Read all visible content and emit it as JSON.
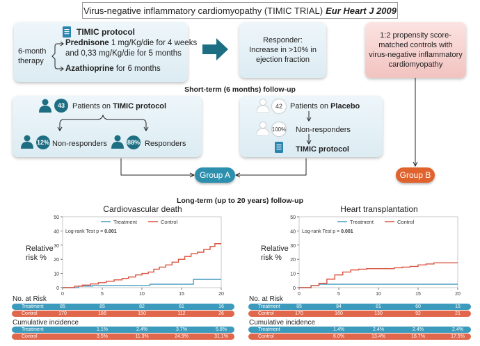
{
  "title": {
    "main": "Virus-negative inflammatory cardiomyopathy (TIMIC TRIAL)",
    "journal": "Eur Heart J 2009"
  },
  "protocol_box": {
    "heading": "TIMIC protocol",
    "therapy_l1": "6-month",
    "therapy_l2": "therapy",
    "pred_drug": "Prednisone",
    "pred_l1": " 1 mg/Kg/die for 4 weeks",
    "pred_l2": "and 0,33 mg/Kg/die for 5 months",
    "aza_drug": "Azathioprine",
    "aza_rest": " for 6 months"
  },
  "responder_box": {
    "l1": "Responder:",
    "l2": "Increase in >10% in",
    "l3": "ejection fraction"
  },
  "controls_box": {
    "l1": "1:2 propensity score-",
    "l2": "matched controls with",
    "l3": "virus-negative inflammatory",
    "l4": "cardiomyopathy"
  },
  "short_term_label": "Short-term (6 months) follow-up",
  "timic_box": {
    "count": "43",
    "label_pre": "Patients on ",
    "label_bold": "TIMIC protocol",
    "nonresp_pct": "12%",
    "nonresp_label": "Non-responders",
    "resp_pct": "88%",
    "resp_label": "Responders"
  },
  "placebo_box": {
    "count": "42",
    "label_pre": "Patients on ",
    "label_bold": "Placebo",
    "nonresp_pct": "100%",
    "nonresp_label": "Non-responders",
    "protocol_label": "TIMIC protocol"
  },
  "group_a": "Group A",
  "group_b": "Group B",
  "long_term_label": "Long-term (up to 20 years) follow-up",
  "labels": {
    "relative_l1": "Relative",
    "relative_l2": "risk %",
    "at_risk": "No. at Risk",
    "cumulative": "Cumulative incidence",
    "treatment": "Treatment",
    "control": "Control"
  },
  "colors": {
    "treatment": "#4a9ec0",
    "control": "#d9533f",
    "teal": "#1d6e82",
    "group_a": "#2d8fae",
    "group_b": "#e0622d"
  },
  "chart_data": [
    {
      "type": "line",
      "title": "Cardiovascular death",
      "xlabel": "",
      "ylabel": "Relative risk %",
      "xlim": [
        0,
        20
      ],
      "ylim": [
        0,
        50
      ],
      "xticks": [
        0,
        5,
        10,
        15,
        20
      ],
      "yticks": [
        0,
        10,
        20,
        30,
        40,
        50
      ],
      "legend": "top",
      "grid": false,
      "annotation": "Log-rank Test p = ",
      "annotation_p": "0.001",
      "series": [
        {
          "name": "Treatment",
          "x": [
            0,
            2,
            3.8,
            11,
            16.5,
            20
          ],
          "y": [
            0,
            1.1,
            1.5,
            2.4,
            5.8,
            5.8
          ]
        },
        {
          "name": "Control",
          "x": [
            0,
            1.5,
            2.5,
            3.5,
            4.5,
            5.5,
            6.5,
            7.5,
            8.3,
            9.2,
            10,
            10.8,
            11.5,
            12.2,
            13,
            13.8,
            14.6,
            15.4,
            16.2,
            17,
            17.8,
            18.6,
            19.2,
            20
          ],
          "y": [
            0,
            1,
            1.8,
            2.6,
            3.5,
            4.5,
            5.5,
            6.5,
            7.5,
            9,
            10,
            11,
            13,
            14.5,
            16,
            18,
            20,
            22,
            24,
            25,
            27,
            29,
            31,
            31
          ]
        }
      ],
      "at_risk": {
        "treatment": [
          "85",
          "85",
          "82",
          "61",
          "16"
        ],
        "control": [
          "170",
          "166",
          "150",
          "112",
          "26"
        ]
      },
      "cumulative": {
        "treatment": [
          "1.1%",
          "2.4%",
          "3.7%",
          "5.8%"
        ],
        "control": [
          "3.5%",
          "11.3%",
          "24.9%",
          "31.1%"
        ]
      }
    },
    {
      "type": "line",
      "title": "Heart transplantation",
      "xlabel": "",
      "ylabel": "Relative risk %",
      "xlim": [
        0,
        20
      ],
      "ylim": [
        0,
        50
      ],
      "xticks": [
        0,
        5,
        10,
        15,
        20
      ],
      "yticks": [
        0,
        10,
        20,
        30,
        40,
        50
      ],
      "legend": "top",
      "grid": false,
      "annotation": "Log-rank Test p = ",
      "annotation_p": "0.001",
      "series": [
        {
          "name": "Treatment",
          "x": [
            0,
            1.5,
            2.5,
            20
          ],
          "y": [
            0,
            1.4,
            2.4,
            2.4
          ]
        },
        {
          "name": "Control",
          "x": [
            0,
            1.5,
            2.5,
            3.5,
            4.5,
            5.5,
            6.5,
            7.5,
            8.5,
            10,
            12,
            13,
            14,
            15,
            16,
            17,
            20
          ],
          "y": [
            0,
            1.5,
            3,
            6,
            9,
            11,
            12.5,
            13,
            13.4,
            13.4,
            14,
            14.5,
            15,
            16,
            16.7,
            17.5,
            17.5
          ]
        }
      ],
      "at_risk": {
        "treatment": [
          "85",
          "84",
          "81",
          "60",
          "15"
        ],
        "control": [
          "170",
          "160",
          "130",
          "92",
          "21"
        ]
      },
      "cumulative": {
        "treatment": [
          "1.4%",
          "2.4%",
          "2.4%",
          "2.4%"
        ],
        "control": [
          "6.0%",
          "13.4%",
          "16.7%",
          "17.5%"
        ]
      }
    }
  ]
}
